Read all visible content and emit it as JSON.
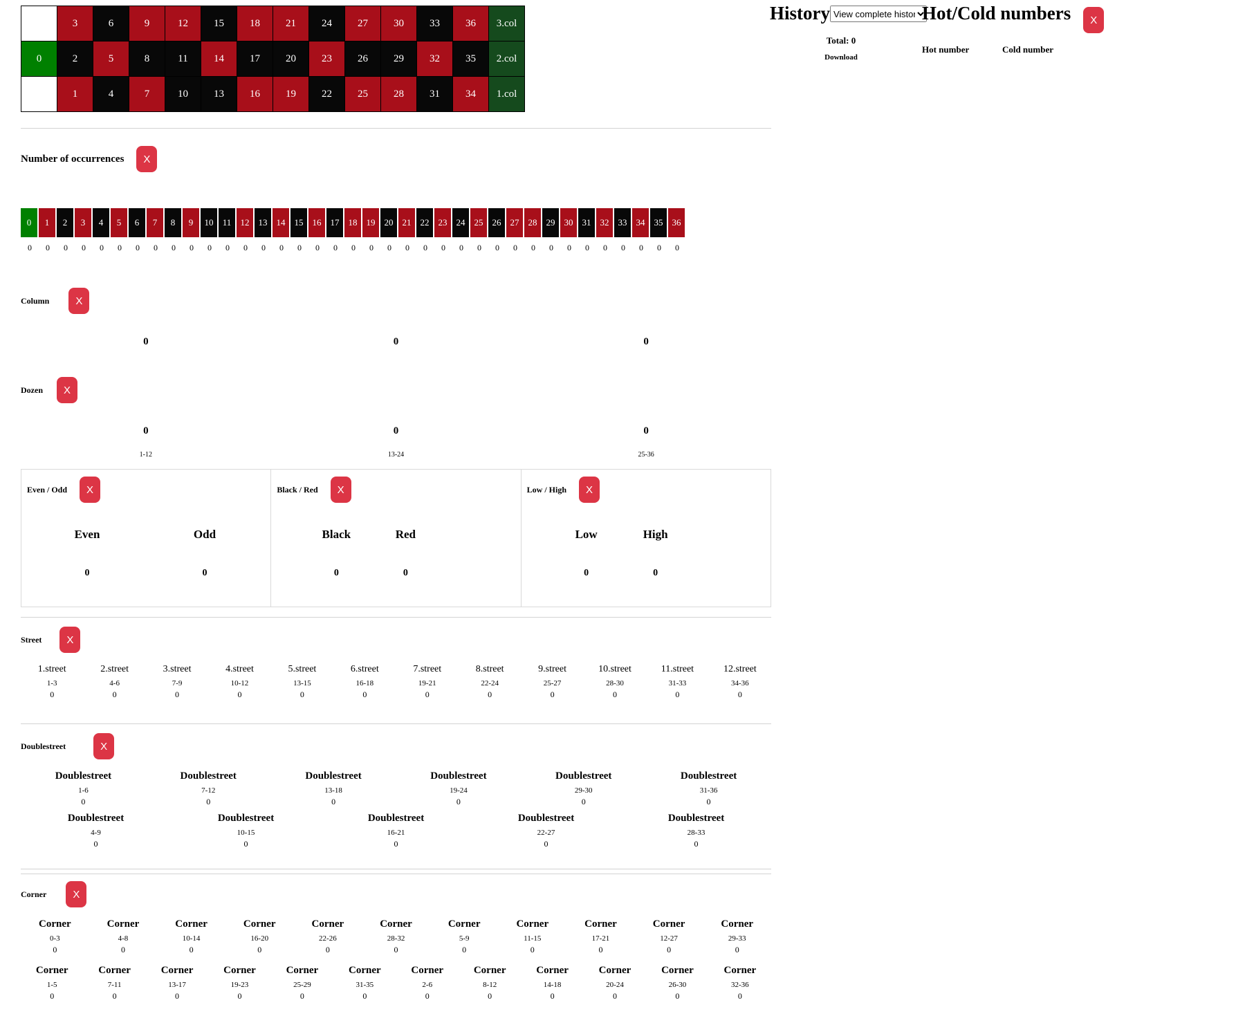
{
  "colors": {
    "red": "#a80f1a",
    "black": "#080808",
    "green": "#008000",
    "column_green": "#154a1d",
    "accent": "#dc3545"
  },
  "board": {
    "rows": [
      {
        "cells": [
          {
            "t": "",
            "c": "white"
          },
          {
            "t": "3",
            "c": "red"
          },
          {
            "t": "6",
            "c": "black"
          },
          {
            "t": "9",
            "c": "red"
          },
          {
            "t": "12",
            "c": "red"
          },
          {
            "t": "15",
            "c": "black"
          },
          {
            "t": "18",
            "c": "red"
          },
          {
            "t": "21",
            "c": "red"
          },
          {
            "t": "24",
            "c": "black"
          },
          {
            "t": "27",
            "c": "red"
          },
          {
            "t": "30",
            "c": "red"
          },
          {
            "t": "33",
            "c": "black"
          },
          {
            "t": "36",
            "c": "red"
          },
          {
            "t": "3.col",
            "c": "col"
          }
        ]
      },
      {
        "cells": [
          {
            "t": "0",
            "c": "green"
          },
          {
            "t": "2",
            "c": "black"
          },
          {
            "t": "5",
            "c": "red"
          },
          {
            "t": "8",
            "c": "black"
          },
          {
            "t": "11",
            "c": "black"
          },
          {
            "t": "14",
            "c": "red"
          },
          {
            "t": "17",
            "c": "black"
          },
          {
            "t": "20",
            "c": "black"
          },
          {
            "t": "23",
            "c": "red"
          },
          {
            "t": "26",
            "c": "black"
          },
          {
            "t": "29",
            "c": "black"
          },
          {
            "t": "32",
            "c": "red"
          },
          {
            "t": "35",
            "c": "black"
          },
          {
            "t": "2.col",
            "c": "col"
          }
        ]
      },
      {
        "cells": [
          {
            "t": "",
            "c": "white"
          },
          {
            "t": "1",
            "c": "red"
          },
          {
            "t": "4",
            "c": "black"
          },
          {
            "t": "7",
            "c": "red"
          },
          {
            "t": "10",
            "c": "black"
          },
          {
            "t": "13",
            "c": "black"
          },
          {
            "t": "16",
            "c": "red"
          },
          {
            "t": "19",
            "c": "red"
          },
          {
            "t": "22",
            "c": "black"
          },
          {
            "t": "25",
            "c": "red"
          },
          {
            "t": "28",
            "c": "red"
          },
          {
            "t": "31",
            "c": "black"
          },
          {
            "t": "34",
            "c": "red"
          },
          {
            "t": "1.col",
            "c": "col"
          }
        ]
      }
    ]
  },
  "history": {
    "title": "History",
    "select_value": "View complete history",
    "total": "Total: 0",
    "download": "Download"
  },
  "hotcold": {
    "title": "Hot/Cold numbers",
    "close": "X",
    "hot_label": "Hot number",
    "cold_label": "Cold number"
  },
  "occurrences": {
    "title": "Number of occurrences",
    "close": "X",
    "numbers": [
      {
        "n": "0",
        "c": "green"
      },
      {
        "n": "1",
        "c": "red"
      },
      {
        "n": "2",
        "c": "black"
      },
      {
        "n": "3",
        "c": "red"
      },
      {
        "n": "4",
        "c": "black"
      },
      {
        "n": "5",
        "c": "red"
      },
      {
        "n": "6",
        "c": "black"
      },
      {
        "n": "7",
        "c": "red"
      },
      {
        "n": "8",
        "c": "black"
      },
      {
        "n": "9",
        "c": "red"
      },
      {
        "n": "10",
        "c": "black"
      },
      {
        "n": "11",
        "c": "black"
      },
      {
        "n": "12",
        "c": "red"
      },
      {
        "n": "13",
        "c": "black"
      },
      {
        "n": "14",
        "c": "red"
      },
      {
        "n": "15",
        "c": "black"
      },
      {
        "n": "16",
        "c": "red"
      },
      {
        "n": "17",
        "c": "black"
      },
      {
        "n": "18",
        "c": "red"
      },
      {
        "n": "19",
        "c": "red"
      },
      {
        "n": "20",
        "c": "black"
      },
      {
        "n": "21",
        "c": "red"
      },
      {
        "n": "22",
        "c": "black"
      },
      {
        "n": "23",
        "c": "red"
      },
      {
        "n": "24",
        "c": "black"
      },
      {
        "n": "25",
        "c": "red"
      },
      {
        "n": "26",
        "c": "black"
      },
      {
        "n": "27",
        "c": "red"
      },
      {
        "n": "28",
        "c": "red"
      },
      {
        "n": "29",
        "c": "black"
      },
      {
        "n": "30",
        "c": "red"
      },
      {
        "n": "31",
        "c": "black"
      },
      {
        "n": "32",
        "c": "red"
      },
      {
        "n": "33",
        "c": "black"
      },
      {
        "n": "34",
        "c": "red"
      },
      {
        "n": "35",
        "c": "black"
      },
      {
        "n": "36",
        "c": "red"
      }
    ],
    "counts": [
      "0",
      "0",
      "0",
      "0",
      "0",
      "0",
      "0",
      "0",
      "0",
      "0",
      "0",
      "0",
      "0",
      "0",
      "0",
      "0",
      "0",
      "0",
      "0",
      "0",
      "0",
      "0",
      "0",
      "0",
      "0",
      "0",
      "0",
      "0",
      "0",
      "0",
      "0",
      "0",
      "0",
      "0",
      "0",
      "0",
      "0"
    ]
  },
  "column": {
    "title": "Column",
    "close": "X",
    "values": [
      "0",
      "0",
      "0"
    ]
  },
  "dozen": {
    "title": "Dozen",
    "close": "X",
    "items": [
      {
        "value": "0",
        "range": "1-12"
      },
      {
        "value": "0",
        "range": "13-24"
      },
      {
        "value": "0",
        "range": "25-36"
      }
    ]
  },
  "panels": [
    {
      "title": "Even / Odd",
      "close": "X",
      "cols": [
        {
          "label": "Even",
          "value": "0"
        },
        {
          "label": "Odd",
          "value": "0"
        }
      ]
    },
    {
      "title": "Black / Red",
      "close": "X",
      "cols": [
        {
          "label": "Black",
          "value": "0"
        },
        {
          "label": "Red",
          "value": "0"
        }
      ]
    },
    {
      "title": "Low / High",
      "close": "X",
      "cols": [
        {
          "label": "Low",
          "value": "0"
        },
        {
          "label": "High",
          "value": "0"
        }
      ]
    }
  ],
  "street": {
    "title": "Street",
    "close": "X",
    "items": [
      {
        "name": "1.street",
        "range": "1-3",
        "value": "0"
      },
      {
        "name": "2.street",
        "range": "4-6",
        "value": "0"
      },
      {
        "name": "3.street",
        "range": "7-9",
        "value": "0"
      },
      {
        "name": "4.street",
        "range": "10-12",
        "value": "0"
      },
      {
        "name": "5.street",
        "range": "13-15",
        "value": "0"
      },
      {
        "name": "6.street",
        "range": "16-18",
        "value": "0"
      },
      {
        "name": "7.street",
        "range": "19-21",
        "value": "0"
      },
      {
        "name": "8.street",
        "range": "22-24",
        "value": "0"
      },
      {
        "name": "9.street",
        "range": "25-27",
        "value": "0"
      },
      {
        "name": "10.street",
        "range": "28-30",
        "value": "0"
      },
      {
        "name": "11.street",
        "range": "31-33",
        "value": "0"
      },
      {
        "name": "12.street",
        "range": "34-36",
        "value": "0"
      }
    ]
  },
  "doublestreet": {
    "title": "Doublestreet",
    "close": "X",
    "row1": [
      {
        "name": "Doublestreet",
        "range": "1-6",
        "value": "0"
      },
      {
        "name": "Doublestreet",
        "range": "7-12",
        "value": "0"
      },
      {
        "name": "Doublestreet",
        "range": "13-18",
        "value": "0"
      },
      {
        "name": "Doublestreet",
        "range": "19-24",
        "value": "0"
      },
      {
        "name": "Doublestreet",
        "range": "29-30",
        "value": "0"
      },
      {
        "name": "Doublestreet",
        "range": "31-36",
        "value": "0"
      }
    ],
    "row2": [
      {
        "name": "Doublestreet",
        "range": "4-9",
        "value": "0"
      },
      {
        "name": "Doublestreet",
        "range": "10-15",
        "value": "0"
      },
      {
        "name": "Doublestreet",
        "range": "16-21",
        "value": "0"
      },
      {
        "name": "Doublestreet",
        "range": "22-27",
        "value": "0"
      },
      {
        "name": "Doublestreet",
        "range": "28-33",
        "value": "0"
      }
    ]
  },
  "corner": {
    "title": "Corner",
    "close": "X",
    "row1": [
      {
        "name": "Corner",
        "range": "0-3",
        "value": "0"
      },
      {
        "name": "Corner",
        "range": "4-8",
        "value": "0"
      },
      {
        "name": "Corner",
        "range": "10-14",
        "value": "0"
      },
      {
        "name": "Corner",
        "range": "16-20",
        "value": "0"
      },
      {
        "name": "Corner",
        "range": "22-26",
        "value": "0"
      },
      {
        "name": "Corner",
        "range": "28-32",
        "value": "0"
      },
      {
        "name": "Corner",
        "range": "5-9",
        "value": "0"
      },
      {
        "name": "Corner",
        "range": "11-15",
        "value": "0"
      },
      {
        "name": "Corner",
        "range": "17-21",
        "value": "0"
      },
      {
        "name": "Corner",
        "range": "12-27",
        "value": "0"
      },
      {
        "name": "Corner",
        "range": "29-33",
        "value": "0"
      }
    ],
    "row2": [
      {
        "name": "Corner",
        "range": "1-5",
        "value": "0"
      },
      {
        "name": "Corner",
        "range": "7-11",
        "value": "0"
      },
      {
        "name": "Corner",
        "range": "13-17",
        "value": "0"
      },
      {
        "name": "Corner",
        "range": "19-23",
        "value": "0"
      },
      {
        "name": "Corner",
        "range": "25-29",
        "value": "0"
      },
      {
        "name": "Corner",
        "range": "31-35",
        "value": "0"
      },
      {
        "name": "Corner",
        "range": "2-6",
        "value": "0"
      },
      {
        "name": "Corner",
        "range": "8-12",
        "value": "0"
      },
      {
        "name": "Corner",
        "range": "14-18",
        "value": "0"
      },
      {
        "name": "Corner",
        "range": "20-24",
        "value": "0"
      },
      {
        "name": "Corner",
        "range": "26-30",
        "value": "0"
      },
      {
        "name": "Corner",
        "range": "32-36",
        "value": "0"
      }
    ]
  }
}
